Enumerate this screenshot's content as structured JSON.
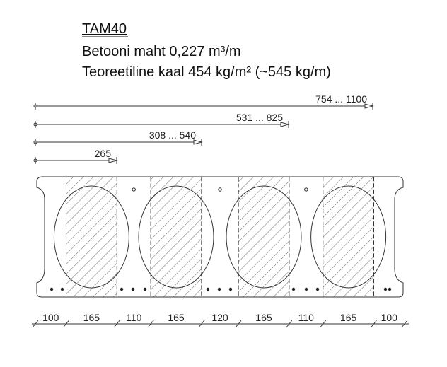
{
  "header": {
    "title": "TAM40",
    "volume": "Betooni maht 0,227 m³/m",
    "weight": "Teoreetiline kaal  454 kg/m² (~545 kg/m)"
  },
  "top_dimensions": [
    "754 ... 1100",
    "531 ... 825",
    "308 ... 540",
    "265"
  ],
  "bottom_dimensions": [
    100,
    165,
    110,
    165,
    120,
    165,
    110,
    165,
    100
  ]
}
